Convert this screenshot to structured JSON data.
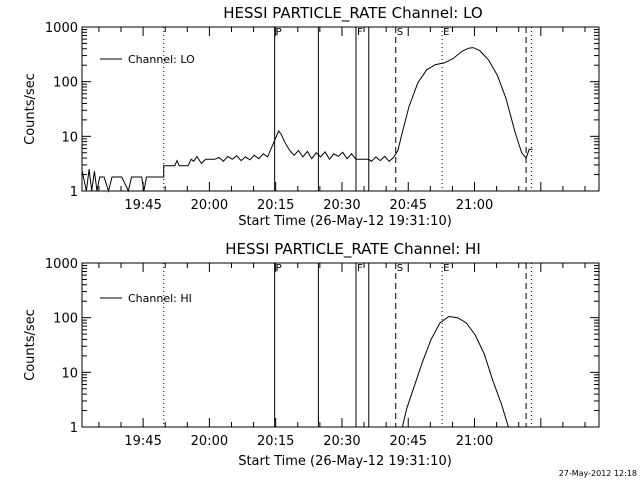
{
  "footer": {
    "timestamp": "27-May-2012 12:18"
  },
  "chart_data": [
    {
      "type": "line",
      "title": "HESSI PARTICLE_RATE Channel: LO",
      "xlabel": "Start Time (26-May-12 19:31:10)",
      "ylabel": "Counts/sec",
      "y_scale": "log",
      "ylim": [
        1,
        1000
      ],
      "xlim_minutes_after_19_31_10": [
        0,
        117
      ],
      "x_ticks": [
        {
          "label": "19:45",
          "t": 13.83
        },
        {
          "label": "20:00",
          "t": 28.83
        },
        {
          "label": "20:15",
          "t": 43.83
        },
        {
          "label": "20:30",
          "t": 58.83
        },
        {
          "label": "20:45",
          "t": 73.83
        },
        {
          "label": "21:00",
          "t": 88.83
        }
      ],
      "y_ticks": [
        {
          "label": "1",
          "v": 1
        },
        {
          "label": "10",
          "v": 10
        },
        {
          "label": "100",
          "v": 100
        },
        {
          "label": "1000",
          "v": 1000
        }
      ],
      "legend": {
        "label": "Channel: LO",
        "position": "top-left"
      },
      "event_markers": [
        {
          "t": 18.5,
          "style": "dotted",
          "label": ""
        },
        {
          "t": 43.6,
          "style": "solid",
          "label": "P"
        },
        {
          "t": 53.5,
          "style": "solid",
          "label": ""
        },
        {
          "t": 62.0,
          "style": "solid",
          "label": "F"
        },
        {
          "t": 64.9,
          "style": "solid",
          "label": ""
        },
        {
          "t": 71.0,
          "style": "dashed",
          "label": "S"
        },
        {
          "t": 81.5,
          "style": "dotted",
          "label": "E"
        },
        {
          "t": 100.5,
          "style": "dashed",
          "label": ""
        },
        {
          "t": 101.7,
          "style": "dotted",
          "label": ""
        }
      ],
      "series": [
        {
          "points": [
            [
              0,
              2.4
            ],
            [
              1,
              1
            ],
            [
              1.6,
              2.5
            ],
            [
              2.2,
              1
            ],
            [
              2.8,
              2.3
            ],
            [
              3.4,
              1
            ],
            [
              4,
              1.8
            ],
            [
              5,
              1.8
            ],
            [
              6,
              1
            ],
            [
              6.8,
              1.8
            ],
            [
              9,
              1.8
            ],
            [
              10.5,
              1
            ],
            [
              11.2,
              1.8
            ],
            [
              13.5,
              1.8
            ],
            [
              14,
              1
            ],
            [
              14.6,
              1.8
            ],
            [
              17,
              1.8
            ],
            [
              18.5,
              1.8
            ],
            [
              18.5,
              2.9
            ],
            [
              21,
              2.9
            ],
            [
              21.5,
              3.6
            ],
            [
              22,
              2.9
            ],
            [
              24,
              2.9
            ],
            [
              24.7,
              3.8
            ],
            [
              25.3,
              3.5
            ],
            [
              26,
              4.3
            ],
            [
              27,
              3.2
            ],
            [
              28,
              3.8
            ],
            [
              30,
              3.8
            ],
            [
              31,
              4.1
            ],
            [
              32,
              3.5
            ],
            [
              33,
              4.3
            ],
            [
              34,
              3.8
            ],
            [
              35,
              4.4
            ],
            [
              36,
              3.6
            ],
            [
              37,
              4.2
            ],
            [
              38,
              3.7
            ],
            [
              39,
              4.5
            ],
            [
              40,
              3.9
            ],
            [
              41,
              4.8
            ],
            [
              42,
              4.2
            ],
            [
              43,
              6.5
            ],
            [
              44,
              10
            ],
            [
              44.5,
              12.5
            ],
            [
              45,
              11.2
            ],
            [
              46,
              7.5
            ],
            [
              47,
              5.5
            ],
            [
              48,
              4.5
            ],
            [
              49,
              5.5
            ],
            [
              50,
              4.2
            ],
            [
              51,
              5.3
            ],
            [
              52,
              3.9
            ],
            [
              53,
              5
            ],
            [
              54,
              4.2
            ],
            [
              55,
              5.2
            ],
            [
              56,
              3.8
            ],
            [
              57,
              4.8
            ],
            [
              58,
              4.3
            ],
            [
              59,
              5.1
            ],
            [
              60,
              3.9
            ],
            [
              61,
              4.8
            ],
            [
              62,
              3.8
            ],
            [
              64.9,
              3.8
            ],
            [
              65.5,
              3.5
            ],
            [
              66.5,
              4.2
            ],
            [
              67.5,
              3.6
            ],
            [
              68.5,
              4.3
            ],
            [
              69.5,
              3.5
            ],
            [
              70.5,
              4.1
            ],
            [
              71.5,
              5.5
            ],
            [
              72.5,
              12
            ],
            [
              74,
              35
            ],
            [
              76,
              95
            ],
            [
              78,
              165
            ],
            [
              80,
              205
            ],
            [
              82,
              220
            ],
            [
              84,
              265
            ],
            [
              86,
              360
            ],
            [
              87.5,
              410
            ],
            [
              88.5,
              420
            ],
            [
              90,
              370
            ],
            [
              92,
              250
            ],
            [
              94,
              130
            ],
            [
              96,
              48
            ],
            [
              98,
              12
            ],
            [
              99.5,
              5
            ],
            [
              100.5,
              4
            ],
            [
              101.2,
              5.8
            ],
            [
              102,
              5.8
            ]
          ]
        }
      ]
    },
    {
      "type": "line",
      "title": "HESSI PARTICLE_RATE Channel: HI",
      "xlabel": "Start Time (26-May-12 19:31:10)",
      "ylabel": "Counts/sec",
      "y_scale": "log",
      "ylim": [
        1,
        1000
      ],
      "xlim_minutes_after_19_31_10": [
        0,
        117
      ],
      "x_ticks": [
        {
          "label": "19:45",
          "t": 13.83
        },
        {
          "label": "20:00",
          "t": 28.83
        },
        {
          "label": "20:15",
          "t": 43.83
        },
        {
          "label": "20:30",
          "t": 58.83
        },
        {
          "label": "20:45",
          "t": 73.83
        },
        {
          "label": "21:00",
          "t": 88.83
        }
      ],
      "y_ticks": [
        {
          "label": "1",
          "v": 1
        },
        {
          "label": "10",
          "v": 10
        },
        {
          "label": "100",
          "v": 100
        },
        {
          "label": "1000",
          "v": 1000
        }
      ],
      "legend": {
        "label": "Channel: HI",
        "position": "top-left"
      },
      "event_markers": [
        {
          "t": 18.5,
          "style": "dotted",
          "label": ""
        },
        {
          "t": 43.6,
          "style": "solid",
          "label": "P"
        },
        {
          "t": 53.5,
          "style": "solid",
          "label": ""
        },
        {
          "t": 62.0,
          "style": "solid",
          "label": "F"
        },
        {
          "t": 64.9,
          "style": "solid",
          "label": ""
        },
        {
          "t": 71.0,
          "style": "dashed",
          "label": "S"
        },
        {
          "t": 81.5,
          "style": "dotted",
          "label": "E"
        },
        {
          "t": 100.5,
          "style": "dashed",
          "label": ""
        },
        {
          "t": 101.7,
          "style": "dotted",
          "label": ""
        }
      ],
      "series": [
        {
          "points": [
            [
              72.5,
              1
            ],
            [
              73.5,
              2.2
            ],
            [
              75,
              5
            ],
            [
              77,
              15
            ],
            [
              79,
              40
            ],
            [
              81,
              80
            ],
            [
              83,
              105
            ],
            [
              85,
              100
            ],
            [
              87,
              80
            ],
            [
              89,
              48
            ],
            [
              91,
              22
            ],
            [
              93,
              7
            ],
            [
              95,
              2.5
            ],
            [
              96.5,
              1
            ]
          ]
        }
      ]
    }
  ]
}
